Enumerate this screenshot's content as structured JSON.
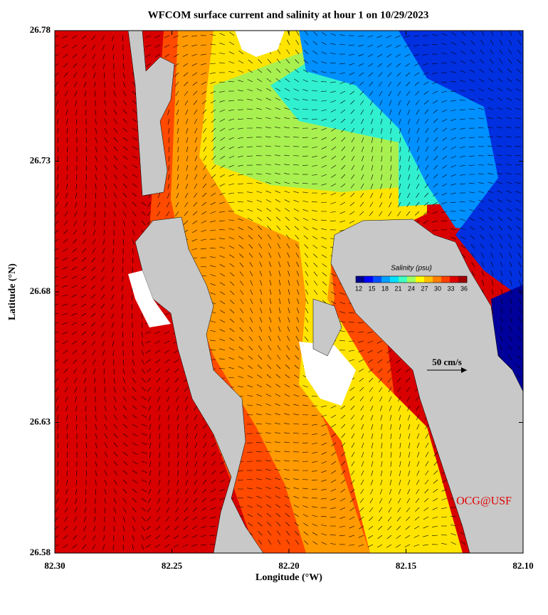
{
  "map": {
    "title": "WFCOM surface current and salinity at hour 1 on 10/29/2023",
    "xlabel": "Longitude (°W)",
    "ylabel": "Latitude (°N)",
    "xlim": [
      82.3,
      82.1
    ],
    "ylim": [
      26.58,
      26.78
    ],
    "xticks": [
      {
        "value": 82.3,
        "label": "82.30"
      },
      {
        "value": 82.25,
        "label": "82.25"
      },
      {
        "value": 82.2,
        "label": "82.20"
      },
      {
        "value": 82.15,
        "label": "82.15"
      },
      {
        "value": 82.1,
        "label": "82.10"
      }
    ],
    "yticks": [
      26.58,
      26.63,
      26.68,
      26.73,
      26.78
    ],
    "colorbar": {
      "title": "Salinity (psu)",
      "ticks": [
        12,
        15,
        18,
        21,
        24,
        27,
        30,
        33,
        36
      ],
      "colors": [
        "#00008f",
        "#0000ff",
        "#0050ff",
        "#00a0ff",
        "#00e0ff",
        "#40ffc0",
        "#a0ff60",
        "#ffff00",
        "#ffc000",
        "#ff8000",
        "#ff4000",
        "#e00000",
        "#a00000"
      ]
    },
    "scale_label": "50 cm/s",
    "credit": "OCG@USF"
  }
}
